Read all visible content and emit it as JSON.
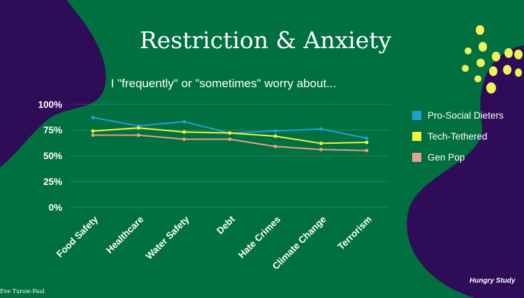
{
  "slide": {
    "title": "Restriction & Anxiety",
    "subtitle": "I \"frequently\" or \"sometimes\" worry about...",
    "credit": "Eve Turow-Paul",
    "brand": "Hungry Study"
  },
  "colors": {
    "background": "#007040",
    "blob": "#2e0c57",
    "dots": "#f2f25a"
  },
  "chart_data": {
    "type": "line",
    "title": "",
    "xlabel": "",
    "ylabel": "",
    "ylim": [
      0,
      100
    ],
    "yticks": [
      "0%",
      "25%",
      "50%",
      "75%",
      "100%"
    ],
    "ytick_values": [
      0,
      25,
      50,
      75,
      100
    ],
    "grid": true,
    "legend_position": "right",
    "categories": [
      "Food Safety",
      "Healthcare",
      "Water Safety",
      "Debt",
      "Hate Crimes",
      "Climate Change",
      "Terrorism"
    ],
    "series": [
      {
        "name": "Pro-Social Dieters",
        "color": "#1ea0d6",
        "values": [
          87,
          79,
          83,
          72,
          74,
          76,
          67
        ]
      },
      {
        "name": "Tech-Tethered",
        "color": "#f5f53a",
        "values": [
          74,
          77,
          73,
          72,
          69,
          62,
          63
        ]
      },
      {
        "name": "Gen Pop",
        "color": "#e8a08a",
        "values": [
          70,
          70,
          66,
          66,
          59,
          56,
          55
        ]
      }
    ]
  }
}
